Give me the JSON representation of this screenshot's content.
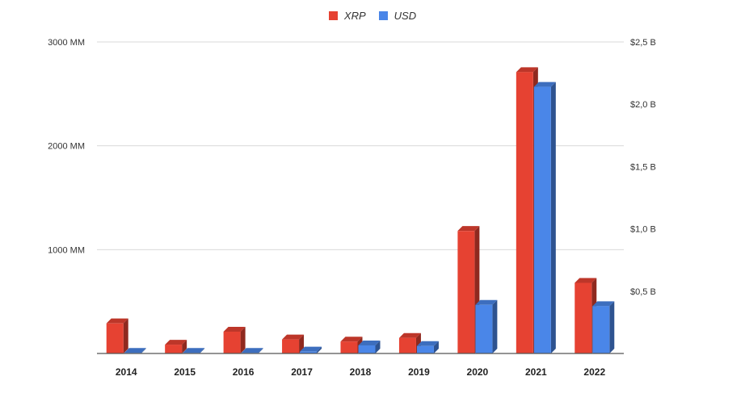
{
  "legend": [
    {
      "name": "XRP",
      "color": "#e64232"
    },
    {
      "name": "USD",
      "color": "#4a86e8"
    }
  ],
  "chart_data": {
    "type": "bar",
    "style": "3d-grouped",
    "categories": [
      "2014",
      "2015",
      "2016",
      "2017",
      "2018",
      "2019",
      "2020",
      "2021",
      "2022"
    ],
    "series": [
      {
        "name": "XRP",
        "axis": "left",
        "color": "#e64232",
        "values": [
          290,
          85,
          210,
          135,
          115,
          150,
          1180,
          2710,
          680
        ]
      },
      {
        "name": "USD",
        "axis": "right",
        "color": "#4a86e8",
        "values": [
          0.005,
          0.005,
          0.005,
          0.015,
          0.065,
          0.06,
          0.39,
          2.14,
          0.38
        ]
      }
    ],
    "y_left": {
      "ylim": [
        0,
        3000
      ],
      "ticks": [
        1000,
        2000,
        3000
      ],
      "tick_labels": [
        "1000 MM",
        "2000 MM",
        "3000 MM"
      ]
    },
    "y_right": {
      "ylim": [
        0,
        2.5
      ],
      "ticks": [
        0.5,
        1.0,
        1.5,
        2.0,
        2.5
      ],
      "tick_labels": [
        "$0,5 B",
        "$1,0 B",
        "$1,5 B",
        "$2,0 B",
        "$2,5 B"
      ]
    },
    "grid": true,
    "legend_position": "top-center"
  }
}
